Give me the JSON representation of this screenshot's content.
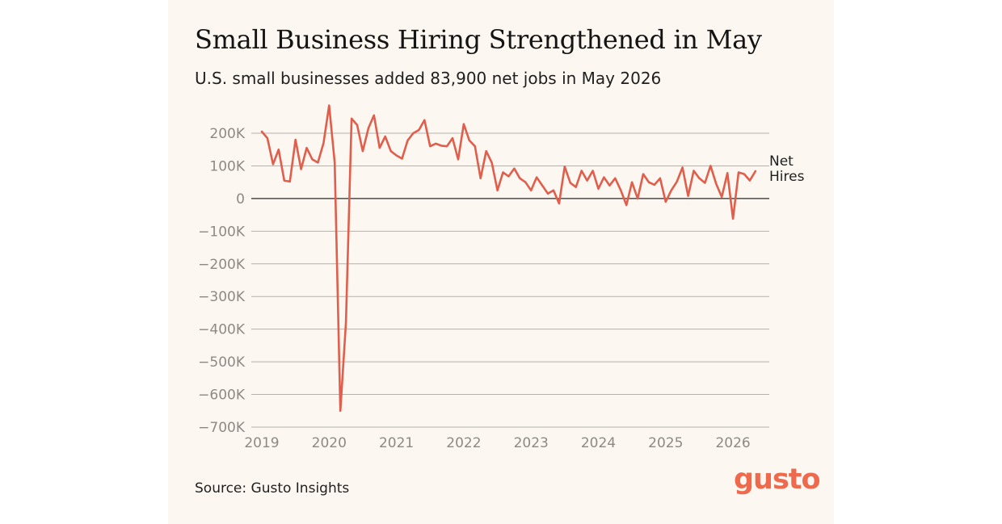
{
  "title": "Small Business Hiring Strengthened in May",
  "subtitle": "U.S. small businesses added 83,900 net jobs in May 2026",
  "source": "Source: Gusto Insights",
  "logo_text": "gusto",
  "colors": {
    "background": "#fcf7f0",
    "line": "#e05e4b",
    "grid": "#b5b1ad",
    "zero_line": "#2a2a2a",
    "logo": "#ef6a4d"
  },
  "chart_data": {
    "type": "line",
    "title": "Small Business Hiring Strengthened in May",
    "subtitle": "U.S. small businesses added 83,900 net jobs in May 2026",
    "xlabel": "",
    "ylabel": "",
    "ylim": [
      -700000,
      200000
    ],
    "ytick_values": [
      200000,
      100000,
      0,
      -100000,
      -200000,
      -300000,
      -400000,
      -500000,
      -600000,
      -700000
    ],
    "ytick_labels": [
      "200K",
      "100K",
      "0",
      "−100K",
      "−200K",
      "−300K",
      "−400K",
      "−500K",
      "−600K",
      "−700K"
    ],
    "xtick_labels": [
      "2019",
      "2020",
      "2021",
      "2022",
      "2023",
      "2024",
      "2025",
      "2026"
    ],
    "grid": true,
    "legend": "inline label at line end",
    "series": [
      {
        "name": "Net Hires",
        "label_lines": [
          "Net",
          "Hires"
        ],
        "x_start": "2019-01",
        "x_end": "2026-05",
        "frequency": "monthly",
        "values": [
          205000,
          185000,
          105000,
          150000,
          55000,
          52000,
          180000,
          90000,
          155000,
          120000,
          110000,
          170000,
          285000,
          110000,
          -650000,
          -380000,
          245000,
          225000,
          145000,
          215000,
          255000,
          155000,
          190000,
          145000,
          132000,
          122000,
          178000,
          200000,
          210000,
          240000,
          160000,
          168000,
          162000,
          160000,
          185000,
          120000,
          228000,
          178000,
          160000,
          62000,
          145000,
          110000,
          25000,
          80000,
          68000,
          92000,
          62000,
          50000,
          25000,
          65000,
          40000,
          15000,
          25000,
          -15000,
          98000,
          48000,
          35000,
          85000,
          55000,
          85000,
          30000,
          65000,
          40000,
          62000,
          25000,
          -20000,
          50000,
          0,
          75000,
          50000,
          42000,
          62000,
          -10000,
          25000,
          52000,
          95000,
          8000,
          85000,
          62000,
          48000,
          100000,
          45000,
          5000,
          78000,
          -62000,
          80000,
          75000,
          55000,
          83900
        ]
      }
    ]
  }
}
